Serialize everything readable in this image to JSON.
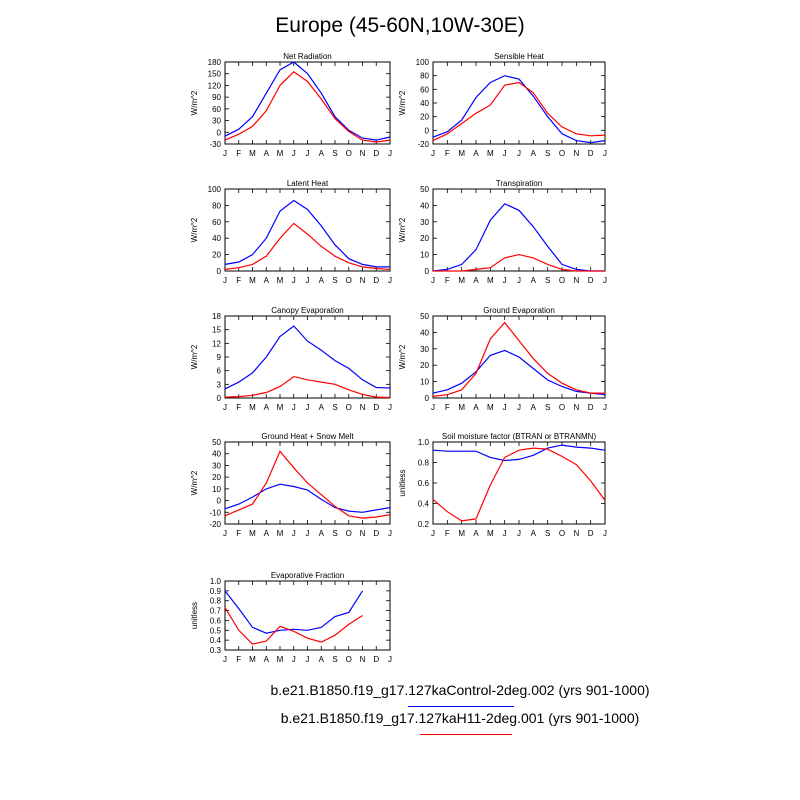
{
  "title": "Europe (45-60N,10W-30E)",
  "colors": {
    "control": "#0000ff",
    "h11": "#ff0000",
    "axis": "#000000"
  },
  "legend": [
    {
      "label": "b.e21.B1850.f19_g17.127kaControl-2deg.002 (yrs 901-1000)",
      "color": "#0000ff"
    },
    {
      "label": "b.e21.B1850.f19_g17.127kaH11-2deg.001 (yrs 901-1000)",
      "color": "#ff0000"
    }
  ],
  "chart_data": [
    {
      "type": "line",
      "title": "Net Radiation",
      "ylabel": "W/m^2",
      "x": [
        "J",
        "F",
        "M",
        "A",
        "M",
        "J",
        "J",
        "A",
        "S",
        "O",
        "N",
        "D",
        "J"
      ],
      "ylim": [
        -30,
        180
      ],
      "yticks": [
        -30,
        0,
        30,
        60,
        90,
        120,
        150,
        180
      ],
      "series": [
        {
          "values": [
            -10,
            8,
            40,
            100,
            160,
            180,
            150,
            100,
            40,
            5,
            -15,
            -20,
            -12
          ]
        },
        {
          "values": [
            -20,
            -5,
            15,
            55,
            120,
            155,
            130,
            85,
            35,
            2,
            -20,
            -25,
            -20
          ]
        }
      ]
    },
    {
      "type": "line",
      "title": "Sensible Heat",
      "ylabel": "W/m^2",
      "x": [
        "J",
        "F",
        "M",
        "A",
        "M",
        "J",
        "J",
        "A",
        "S",
        "O",
        "N",
        "D",
        "J"
      ],
      "ylim": [
        -20,
        100
      ],
      "yticks": [
        -20,
        0,
        20,
        40,
        60,
        80,
        100
      ],
      "series": [
        {
          "values": [
            -10,
            -2,
            15,
            48,
            70,
            80,
            75,
            50,
            20,
            -5,
            -15,
            -18,
            -15
          ]
        },
        {
          "values": [
            -15,
            -5,
            10,
            25,
            37,
            66,
            70,
            55,
            25,
            5,
            -5,
            -8,
            -7
          ]
        }
      ]
    },
    {
      "type": "line",
      "title": "Latent Heat",
      "ylabel": "W/m^2",
      "x": [
        "J",
        "F",
        "M",
        "A",
        "M",
        "J",
        "J",
        "A",
        "S",
        "O",
        "N",
        "D",
        "J"
      ],
      "ylim": [
        0,
        100
      ],
      "yticks": [
        0,
        20,
        40,
        60,
        80,
        100
      ],
      "series": [
        {
          "values": [
            8,
            11,
            20,
            40,
            73,
            86,
            75,
            55,
            32,
            15,
            8,
            5,
            5
          ]
        },
        {
          "values": [
            2,
            4,
            8,
            18,
            40,
            58,
            45,
            30,
            18,
            10,
            5,
            3,
            2
          ]
        }
      ]
    },
    {
      "type": "line",
      "title": "Transpiration",
      "ylabel": "W/m^2",
      "x": [
        "J",
        "F",
        "M",
        "A",
        "M",
        "J",
        "J",
        "A",
        "S",
        "O",
        "N",
        "D",
        "J"
      ],
      "ylim": [
        0,
        50
      ],
      "yticks": [
        0,
        10,
        20,
        30,
        40,
        50
      ],
      "series": [
        {
          "values": [
            0,
            1,
            4,
            13,
            31,
            41,
            37,
            27,
            15,
            4,
            1,
            0,
            0
          ]
        },
        {
          "values": [
            0,
            0,
            0,
            1,
            2,
            8,
            10,
            8,
            4,
            1,
            0,
            0,
            0
          ]
        }
      ]
    },
    {
      "type": "line",
      "title": "Canopy Evaporation",
      "ylabel": "W/m^2",
      "x": [
        "J",
        "F",
        "M",
        "A",
        "M",
        "J",
        "J",
        "A",
        "S",
        "O",
        "N",
        "D",
        "J"
      ],
      "ylim": [
        0,
        18
      ],
      "yticks": [
        0,
        3,
        6,
        9,
        12,
        15,
        18
      ],
      "series": [
        {
          "values": [
            2,
            3.5,
            5.5,
            9,
            13.5,
            15.8,
            12.5,
            10.5,
            8.2,
            6.5,
            4,
            2.3,
            2.2
          ]
        },
        {
          "values": [
            0.2,
            0.3,
            0.6,
            1.2,
            2.5,
            4.7,
            4,
            3.5,
            3,
            1.8,
            0.8,
            0.2,
            0.1
          ]
        }
      ]
    },
    {
      "type": "line",
      "title": "Ground Evaporation",
      "ylabel": "W/m^2",
      "x": [
        "J",
        "F",
        "M",
        "A",
        "M",
        "J",
        "J",
        "A",
        "S",
        "O",
        "N",
        "D",
        "J"
      ],
      "ylim": [
        0,
        50
      ],
      "yticks": [
        0,
        10,
        20,
        30,
        40,
        50
      ],
      "series": [
        {
          "values": [
            3,
            5,
            9,
            16,
            26,
            29,
            25,
            18,
            11,
            7,
            4,
            3,
            2
          ]
        },
        {
          "values": [
            1,
            2,
            5,
            15,
            36,
            46,
            35,
            24,
            15,
            9,
            5,
            3,
            3
          ]
        }
      ]
    },
    {
      "type": "line",
      "title": "Ground Heat + Snow Melt",
      "ylabel": "W/m^2",
      "x": [
        "J",
        "F",
        "M",
        "A",
        "M",
        "J",
        "J",
        "A",
        "S",
        "O",
        "N",
        "D",
        "J"
      ],
      "ylim": [
        -20,
        50
      ],
      "yticks": [
        -20,
        -10,
        0,
        10,
        20,
        30,
        40,
        50
      ],
      "series": [
        {
          "values": [
            -7,
            -3,
            3,
            10,
            14,
            12,
            9,
            1,
            -6,
            -9,
            -10,
            -8,
            -6
          ]
        },
        {
          "values": [
            -13,
            -8,
            -3,
            15,
            42,
            28,
            15,
            5,
            -5,
            -13,
            -15,
            -14,
            -12
          ]
        }
      ]
    },
    {
      "type": "line",
      "title": "Soil moisture factor (BTRAN or BTRANMN)",
      "ylabel": "unitless",
      "x": [
        "J",
        "F",
        "M",
        "A",
        "M",
        "J",
        "J",
        "A",
        "S",
        "O",
        "N",
        "D",
        "J"
      ],
      "ylim": [
        0.2,
        1.0
      ],
      "yticks": [
        0.2,
        0.4,
        0.6,
        0.8,
        1.0
      ],
      "series": [
        {
          "values": [
            0.92,
            0.91,
            0.91,
            0.91,
            0.85,
            0.82,
            0.83,
            0.87,
            0.94,
            0.97,
            0.95,
            0.94,
            0.92
          ]
        },
        {
          "values": [
            0.44,
            0.32,
            0.23,
            0.25,
            0.58,
            0.85,
            0.92,
            0.94,
            0.93,
            0.86,
            0.78,
            0.62,
            0.43
          ]
        }
      ]
    },
    {
      "type": "line",
      "title": "Evaporative Fraction",
      "ylabel": "unitless",
      "x": [
        "J",
        "F",
        "M",
        "A",
        "M",
        "J",
        "J",
        "A",
        "S",
        "O",
        "N",
        "D",
        "J"
      ],
      "ylim": [
        0.3,
        1.0
      ],
      "yticks": [
        0.3,
        0.4,
        0.5,
        0.6,
        0.7,
        0.8,
        0.9,
        1.0
      ],
      "series": [
        {
          "values": [
            0.9,
            0.72,
            0.53,
            0.47,
            0.5,
            0.51,
            0.5,
            0.53,
            0.64,
            0.68,
            0.9,
            null,
            null
          ]
        },
        {
          "values": [
            0.73,
            0.5,
            0.36,
            0.39,
            0.54,
            0.49,
            0.42,
            0.38,
            0.45,
            0.56,
            0.65,
            null,
            null
          ]
        }
      ]
    }
  ]
}
